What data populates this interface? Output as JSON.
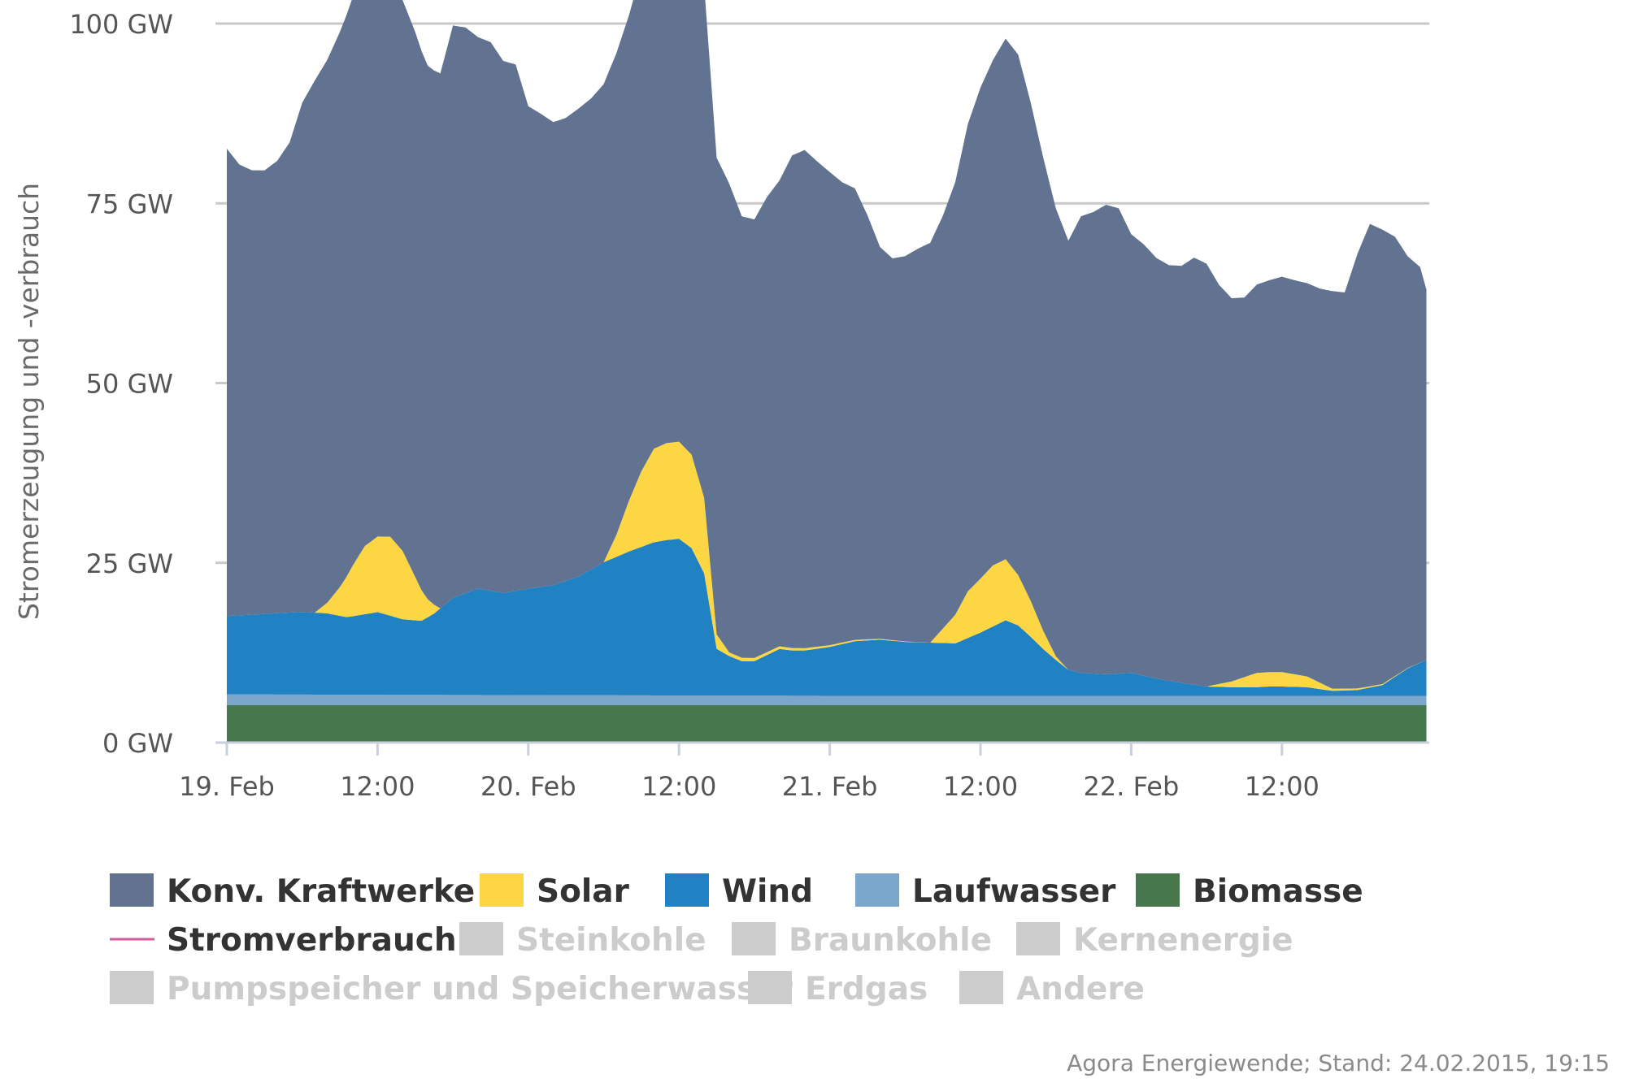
{
  "chart_data": {
    "type": "area",
    "stacked": true,
    "ylabel": "Stromerzeugung und -verbrauch",
    "y_ticks": [
      "0 GW",
      "25 GW",
      "50 GW",
      "75 GW",
      "100 GW"
    ],
    "ylim": [
      0,
      100
    ],
    "x_ticks": [
      "19. Feb",
      "12:00",
      "20. Feb",
      "12:00",
      "21. Feb",
      "12:00",
      "22. Feb",
      "12:00"
    ],
    "x_hours_per_tick": 12,
    "x_range_hours": [
      0,
      95.5
    ],
    "grid": true,
    "legend_position": "bottom",
    "series": [
      {
        "name": "Biomasse",
        "color": "#47774d",
        "x": [
          0,
          95.5
        ],
        "y": [
          5.2,
          5.2
        ]
      },
      {
        "name": "Laufwasser",
        "color": "#7ba7cd",
        "x": [
          0,
          24,
          48,
          72,
          95.5
        ],
        "y": [
          1.5,
          1.4,
          1.3,
          1.3,
          1.3
        ]
      },
      {
        "name": "Wind",
        "color": "#2081c3",
        "x": [
          0,
          4,
          6,
          8,
          9.5,
          10,
          12,
          14,
          15.5,
          16.5,
          18,
          20,
          22,
          24,
          26,
          28,
          30,
          32,
          34,
          35,
          36,
          37,
          38,
          39,
          40,
          41,
          42,
          44,
          45,
          46,
          48,
          50,
          52,
          54,
          56,
          58,
          60,
          62,
          63,
          64,
          65,
          66,
          67,
          68,
          70,
          72,
          74,
          76,
          78,
          80,
          82,
          83,
          84,
          86,
          88,
          90,
          92,
          94,
          95.5
        ],
        "y": [
          10.9,
          11.3,
          11.5,
          11.3,
          10.8,
          10.9,
          11.5,
          10.5,
          10.3,
          11.3,
          13.5,
          14.8,
          14.2,
          14.8,
          15.3,
          16.5,
          18.5,
          20,
          21.3,
          21.6,
          21.8,
          20.5,
          17,
          6.5,
          5.5,
          4.8,
          4.8,
          6.5,
          6.3,
          6.3,
          6.8,
          7.6,
          7.8,
          7.5,
          7.4,
          7.3,
          8.8,
          10.5,
          9.8,
          8.2,
          6.5,
          5,
          3.6,
          3.2,
          3,
          3.2,
          2.4,
          1.8,
          1.3,
          1.2,
          1.2,
          1.3,
          1.3,
          1.2,
          0.7,
          0.8,
          1.5,
          3.8,
          5
        ]
      },
      {
        "name": "Solar",
        "color": "#fdd743",
        "x": [
          0,
          7,
          8,
          9,
          10,
          11,
          12,
          13,
          14,
          15,
          16,
          17,
          30,
          31,
          32,
          33,
          34,
          35,
          36,
          37,
          38,
          39,
          40,
          56,
          57,
          58,
          59,
          60,
          61,
          62,
          63,
          64,
          65,
          66,
          67,
          78,
          80,
          82,
          84,
          86,
          88,
          95.5
        ],
        "y": [
          0,
          0,
          1.5,
          4,
          7,
          9.5,
          10.5,
          11,
          9.5,
          6,
          2.5,
          0,
          0,
          3,
          7,
          10.5,
          13,
          13.5,
          13.5,
          13,
          10.5,
          2,
          0.5,
          0,
          2,
          4,
          6.5,
          7.5,
          8.5,
          8.5,
          7,
          5,
          2.5,
          0.5,
          0,
          0,
          0.8,
          2,
          2,
          1.5,
          0.3,
          0
        ]
      },
      {
        "name": "Konv. Kraftwerke",
        "color": "#617390",
        "x": [
          0,
          1,
          2,
          3,
          4,
          5,
          6,
          7,
          8,
          9,
          10,
          11,
          12,
          13,
          14,
          15,
          16,
          17,
          18,
          19,
          20,
          21,
          22,
          23,
          24,
          25,
          26,
          27,
          28,
          29,
          30,
          31,
          32,
          33,
          34,
          35,
          36,
          37,
          38,
          39,
          40,
          41,
          42,
          43,
          44,
          45,
          46,
          47,
          48,
          49,
          50,
          51,
          52,
          53,
          54,
          55,
          56,
          57,
          58,
          59,
          60,
          61,
          62,
          63,
          64,
          65,
          66,
          67,
          68,
          69,
          70,
          71,
          72,
          73,
          74,
          75,
          76,
          77,
          78,
          79,
          80,
          81,
          82,
          83,
          84,
          85,
          86,
          87,
          88,
          89,
          90,
          91,
          92,
          93,
          94,
          95,
          95.5
        ],
        "y": [
          65,
          62.7,
          61.8,
          61.7,
          62.9,
          65.4,
          70.8,
          74,
          75.5,
          77.2,
          79,
          79.2,
          78.2,
          77.4,
          76.6,
          75.8,
          74.2,
          74.4,
          79.6,
          78.7,
          76.7,
          76.3,
          74,
          73.2,
          67.1,
          65.8,
          64.4,
          64.4,
          65.1,
          65.5,
          66.5,
          67,
          67.5,
          69.6,
          70.4,
          70.4,
          71.2,
          71.2,
          71.3,
          66.3,
          65.2,
          61.4,
          61,
          63.3,
          64.8,
          68.5,
          69.3,
          67.5,
          65.8,
          64,
          62.8,
          59,
          54.5,
          53.1,
          53.6,
          54.7,
          55.6,
          57.4,
          60.2,
          65,
          68.3,
          70.3,
          72.4,
          72.4,
          69.3,
          65.8,
          62.3,
          59.7,
          63.5,
          64.2,
          65.3,
          64.7,
          61,
          60,
          58.5,
          57.8,
          58,
          59.4,
          58.8,
          55.5,
          53.3,
          52.8,
          54,
          54.5,
          55,
          54.8,
          54.7,
          54.8,
          55.3,
          55.1,
          60.4,
          64.3,
          63.2,
          61.1,
          57.3,
          55,
          51.5
        ]
      },
      {
        "name": "Stromverbrauch",
        "color": "#d55a9e",
        "x": [],
        "y": []
      }
    ],
    "legend": [
      {
        "label": "Konv. Kraftwerke",
        "color": "#617390",
        "active": true,
        "marker": "box"
      },
      {
        "label": "Solar",
        "color": "#fdd743",
        "active": true,
        "marker": "box"
      },
      {
        "label": "Wind",
        "color": "#2081c3",
        "active": true,
        "marker": "box"
      },
      {
        "label": "Laufwasser",
        "color": "#7ba7cd",
        "active": true,
        "marker": "box"
      },
      {
        "label": "Biomasse",
        "color": "#47774d",
        "active": true,
        "marker": "box"
      },
      {
        "label": "Stromverbrauch",
        "color": "#d55a9e",
        "active": true,
        "marker": "line"
      },
      {
        "label": "Steinkohle",
        "color": "#cccccc",
        "active": false,
        "marker": "box"
      },
      {
        "label": "Braunkohle",
        "color": "#cccccc",
        "active": false,
        "marker": "box"
      },
      {
        "label": "Kernenergie",
        "color": "#cccccc",
        "active": false,
        "marker": "box"
      },
      {
        "label": "Pumpspeicher und Speicherwasser",
        "color": "#cccccc",
        "active": false,
        "marker": "box"
      },
      {
        "label": "Erdgas",
        "color": "#cccccc",
        "active": false,
        "marker": "box"
      },
      {
        "label": "Andere",
        "color": "#cccccc",
        "active": false,
        "marker": "box"
      }
    ],
    "credit": "Agora Energiewende; Stand: 24.02.2015, 19:15"
  }
}
